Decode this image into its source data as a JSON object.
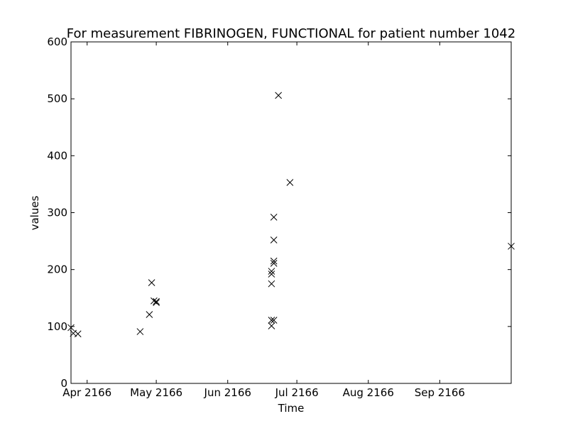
{
  "chart_data": {
    "type": "scatter",
    "title": "For measurement FIBRINOGEN, FUNCTIONAL for patient number 1042",
    "xlabel": "Time",
    "ylabel": "values",
    "xlim": [
      "2166-03-25",
      "2166-10-02"
    ],
    "ylim": [
      0,
      600
    ],
    "yticks": [
      0,
      100,
      200,
      300,
      400,
      500,
      600
    ],
    "xticks": [
      {
        "date": "2166-04-01",
        "label": "Apr 2166"
      },
      {
        "date": "2166-05-01",
        "label": "May 2166"
      },
      {
        "date": "2166-06-01",
        "label": "Jun 2166"
      },
      {
        "date": "2166-07-01",
        "label": "Jul 2166"
      },
      {
        "date": "2166-08-01",
        "label": "Aug 2166"
      },
      {
        "date": "2166-09-01",
        "label": "Sep 2166"
      }
    ],
    "grid": false,
    "marker": "x",
    "color": "#000000",
    "points": [
      {
        "x": "2166-03-25",
        "y": 98
      },
      {
        "x": "2166-03-26",
        "y": 88
      },
      {
        "x": "2166-03-28",
        "y": 87
      },
      {
        "x": "2166-04-24",
        "y": 91
      },
      {
        "x": "2166-04-28",
        "y": 121
      },
      {
        "x": "2166-04-29",
        "y": 177
      },
      {
        "x": "2166-04-30",
        "y": 145
      },
      {
        "x": "2166-05-01",
        "y": 142
      },
      {
        "x": "2166-05-01",
        "y": 144
      },
      {
        "x": "2166-06-20",
        "y": 101
      },
      {
        "x": "2166-06-20",
        "y": 111
      },
      {
        "x": "2166-06-20",
        "y": 192
      },
      {
        "x": "2166-06-20",
        "y": 197
      },
      {
        "x": "2166-06-20",
        "y": 175
      },
      {
        "x": "2166-06-21",
        "y": 215
      },
      {
        "x": "2166-06-21",
        "y": 211
      },
      {
        "x": "2166-06-21",
        "y": 252
      },
      {
        "x": "2166-06-21",
        "y": 111
      },
      {
        "x": "2166-06-21",
        "y": 292
      },
      {
        "x": "2166-06-23",
        "y": 506
      },
      {
        "x": "2166-06-28",
        "y": 353
      },
      {
        "x": "2166-10-02",
        "y": 241
      }
    ]
  }
}
